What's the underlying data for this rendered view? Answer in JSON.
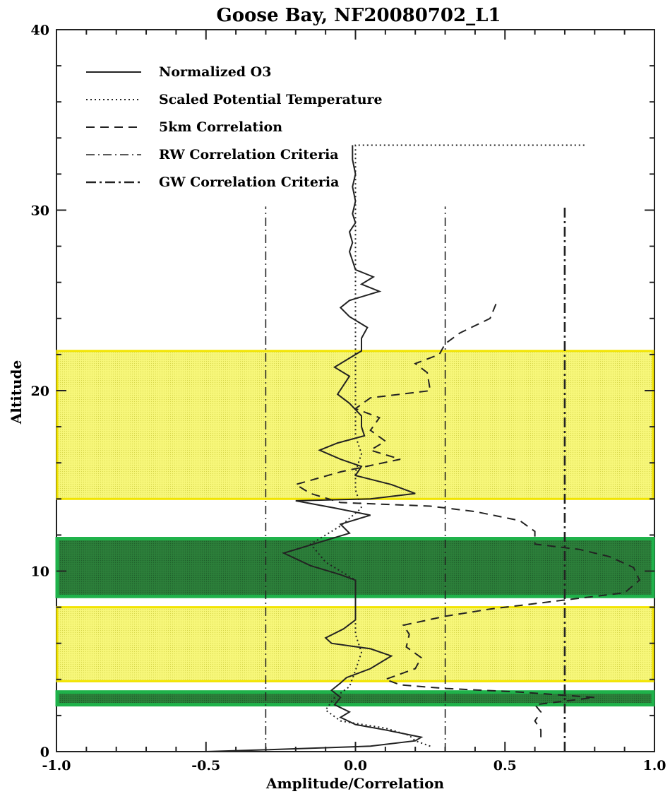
{
  "chart_data": {
    "type": "line",
    "title": "Goose Bay, NF20080702_L1",
    "xlabel": "Amplitude/Correlation",
    "ylabel": "Altitude",
    "xlim": [
      -1.0,
      1.0
    ],
    "ylim": [
      0,
      40
    ],
    "x_ticks": [
      "-1.0",
      "-0.5",
      "0.0",
      "0.5",
      "1.0"
    ],
    "y_ticks": [
      "0",
      "10",
      "20",
      "30",
      "40"
    ],
    "grid": false,
    "legend_position": "top-left",
    "legend": [
      {
        "label": "Normalized O3",
        "style": "solid"
      },
      {
        "label": "Scaled Potential Temperature",
        "style": "dotted"
      },
      {
        "label": "5km Correlation",
        "style": "dashed"
      },
      {
        "label": "RW Correlation Criteria",
        "style": "dashdot"
      },
      {
        "label": "GW Correlation Criteria",
        "style": "dashdotbold"
      }
    ],
    "series": [
      {
        "name": "Normalized O3",
        "points": [
          [
            -0.5,
            0
          ],
          [
            -0.3,
            0.1
          ],
          [
            0.05,
            0.3
          ],
          [
            0.2,
            0.6
          ],
          [
            0.22,
            0.8
          ],
          [
            0.1,
            1.2
          ],
          [
            0.0,
            1.5
          ],
          [
            -0.05,
            1.9
          ],
          [
            -0.02,
            2.2
          ],
          [
            -0.07,
            2.6
          ],
          [
            -0.05,
            3.0
          ],
          [
            -0.08,
            3.4
          ],
          [
            -0.05,
            3.8
          ],
          [
            -0.03,
            4.1
          ],
          [
            0.05,
            4.6
          ],
          [
            0.12,
            5.3
          ],
          [
            0.05,
            5.7
          ],
          [
            -0.08,
            6.0
          ],
          [
            -0.1,
            6.3
          ],
          [
            -0.04,
            6.8
          ],
          [
            0.0,
            7.3
          ],
          [
            0.0,
            8.0
          ],
          [
            0.0,
            8.5
          ],
          [
            0.0,
            9.0
          ],
          [
            0.0,
            9.5
          ],
          [
            -0.05,
            9.8
          ],
          [
            -0.15,
            10.3
          ],
          [
            -0.24,
            11.0
          ],
          [
            -0.12,
            11.6
          ],
          [
            -0.02,
            12.1
          ],
          [
            -0.05,
            12.6
          ],
          [
            0.05,
            13.1
          ],
          [
            -0.07,
            13.5
          ],
          [
            -0.2,
            13.9
          ],
          [
            0.05,
            14.0
          ],
          [
            0.2,
            14.3
          ],
          [
            0.12,
            14.8
          ],
          [
            0.0,
            15.3
          ],
          [
            0.02,
            15.8
          ],
          [
            -0.05,
            16.2
          ],
          [
            -0.12,
            16.7
          ],
          [
            -0.06,
            17.1
          ],
          [
            0.03,
            17.5
          ],
          [
            0.02,
            18.0
          ],
          [
            0.02,
            18.6
          ],
          [
            -0.02,
            19.3
          ],
          [
            -0.06,
            19.8
          ],
          [
            -0.04,
            20.3
          ],
          [
            -0.02,
            20.8
          ],
          [
            -0.07,
            21.3
          ],
          [
            -0.02,
            21.8
          ],
          [
            0.02,
            22.2
          ],
          [
            0.02,
            22.9
          ],
          [
            0.04,
            23.5
          ],
          [
            -0.02,
            24.1
          ],
          [
            -0.05,
            24.6
          ],
          [
            -0.02,
            25.0
          ],
          [
            0.08,
            25.5
          ],
          [
            0.02,
            25.9
          ],
          [
            0.06,
            26.3
          ],
          [
            0.0,
            26.7
          ],
          [
            -0.01,
            27.2
          ],
          [
            -0.02,
            27.7
          ],
          [
            -0.01,
            28.2
          ],
          [
            -0.02,
            28.8
          ],
          [
            0.0,
            29.3
          ],
          [
            -0.01,
            29.8
          ],
          [
            0.0,
            30.5
          ],
          [
            -0.01,
            31.3
          ],
          [
            0.0,
            32.0
          ],
          [
            -0.01,
            32.8
          ],
          [
            -0.01,
            33.6
          ]
        ]
      },
      {
        "name": "Scaled Potential Temperature",
        "points": [
          [
            0.25,
            0.3
          ],
          [
            0.2,
            0.6
          ],
          [
            0.18,
            0.9
          ],
          [
            0.1,
            1.3
          ],
          [
            -0.05,
            1.7
          ],
          [
            -0.1,
            2.3
          ],
          [
            -0.07,
            3.0
          ],
          [
            -0.02,
            3.6
          ],
          [
            0.0,
            4.5
          ],
          [
            0.02,
            5.5
          ],
          [
            0.0,
            6.5
          ],
          [
            0.0,
            7.5
          ],
          [
            0.0,
            8.5
          ],
          [
            0.0,
            9.5
          ],
          [
            -0.1,
            10.5
          ],
          [
            -0.15,
            11.5
          ],
          [
            -0.05,
            12.5
          ],
          [
            0.02,
            13.5
          ],
          [
            0.0,
            14.5
          ],
          [
            0.0,
            15.5
          ],
          [
            0.02,
            16.5
          ],
          [
            0.0,
            17.5
          ],
          [
            0.0,
            18.5
          ],
          [
            0.0,
            19.5
          ],
          [
            0.0,
            20.5
          ],
          [
            0.0,
            21.5
          ],
          [
            0.0,
            22.5
          ],
          [
            0.0,
            23.5
          ],
          [
            0.0,
            24.5
          ],
          [
            0.0,
            25.5
          ],
          [
            0.0,
            26.5
          ],
          [
            0.0,
            27.5
          ],
          [
            0.0,
            28.5
          ],
          [
            0.0,
            29.5
          ],
          [
            0.0,
            30.5
          ],
          [
            0.0,
            31.5
          ],
          [
            0.0,
            32.5
          ],
          [
            0.0,
            33.6
          ],
          [
            0.77,
            33.6
          ]
        ]
      },
      {
        "name": "5km Correlation",
        "points": [
          [
            0.62,
            0.8
          ],
          [
            0.62,
            1.2
          ],
          [
            0.6,
            1.7
          ],
          [
            0.62,
            2.2
          ],
          [
            0.6,
            2.6
          ],
          [
            0.8,
            3.0
          ],
          [
            0.55,
            3.3
          ],
          [
            0.3,
            3.5
          ],
          [
            0.15,
            3.7
          ],
          [
            0.1,
            4.0
          ],
          [
            0.2,
            4.6
          ],
          [
            0.22,
            5.2
          ],
          [
            0.17,
            5.8
          ],
          [
            0.18,
            6.5
          ],
          [
            0.16,
            7.0
          ],
          [
            0.3,
            7.5
          ],
          [
            0.45,
            7.9
          ],
          [
            0.6,
            8.2
          ],
          [
            0.75,
            8.5
          ],
          [
            0.9,
            8.8
          ],
          [
            0.95,
            9.5
          ],
          [
            0.93,
            10.2
          ],
          [
            0.85,
            10.8
          ],
          [
            0.75,
            11.2
          ],
          [
            0.6,
            11.5
          ],
          [
            0.6,
            12.2
          ],
          [
            0.55,
            12.8
          ],
          [
            0.4,
            13.3
          ],
          [
            0.25,
            13.6
          ],
          [
            -0.05,
            13.8
          ],
          [
            -0.15,
            14.3
          ],
          [
            -0.2,
            14.8
          ],
          [
            -0.05,
            15.5
          ],
          [
            0.15,
            16.2
          ],
          [
            0.05,
            16.7
          ],
          [
            0.1,
            17.2
          ],
          [
            0.05,
            17.8
          ],
          [
            0.08,
            18.5
          ],
          [
            0.0,
            19.0
          ],
          [
            0.05,
            19.6
          ],
          [
            0.25,
            20.0
          ],
          [
            0.24,
            21.0
          ],
          [
            0.2,
            21.5
          ],
          [
            0.28,
            22.0
          ],
          [
            0.3,
            22.6
          ],
          [
            0.35,
            23.2
          ],
          [
            0.45,
            24.0
          ],
          [
            0.47,
            24.8
          ]
        ]
      },
      {
        "name": "RW Correlation Criteria",
        "points": [
          [
            -0.3,
            0
          ],
          [
            -0.3,
            30.2
          ]
        ]
      },
      {
        "name": "RW Correlation Criteria",
        "points": [
          [
            0.3,
            0
          ],
          [
            0.3,
            30.2
          ]
        ]
      },
      {
        "name": "GW Correlation Criteria",
        "points": [
          [
            0.7,
            0
          ],
          [
            0.7,
            30.2
          ]
        ]
      }
    ],
    "highlight_bands": [
      {
        "color": "#f5f571",
        "from": 14.0,
        "to": 22.2
      },
      {
        "color": "#2e8b3e",
        "from": 8.6,
        "to": 11.8
      },
      {
        "color": "#f5f571",
        "from": 3.9,
        "to": 8.0
      },
      {
        "color": "#2e8b3e",
        "from": 2.6,
        "to": 3.3
      }
    ],
    "colors": {
      "yellow_fill": "#f5f571",
      "yellow_border": "#f2e400",
      "green_fill": "#2f8a40",
      "green_border": "#1fb24a",
      "line": "#222222"
    }
  }
}
